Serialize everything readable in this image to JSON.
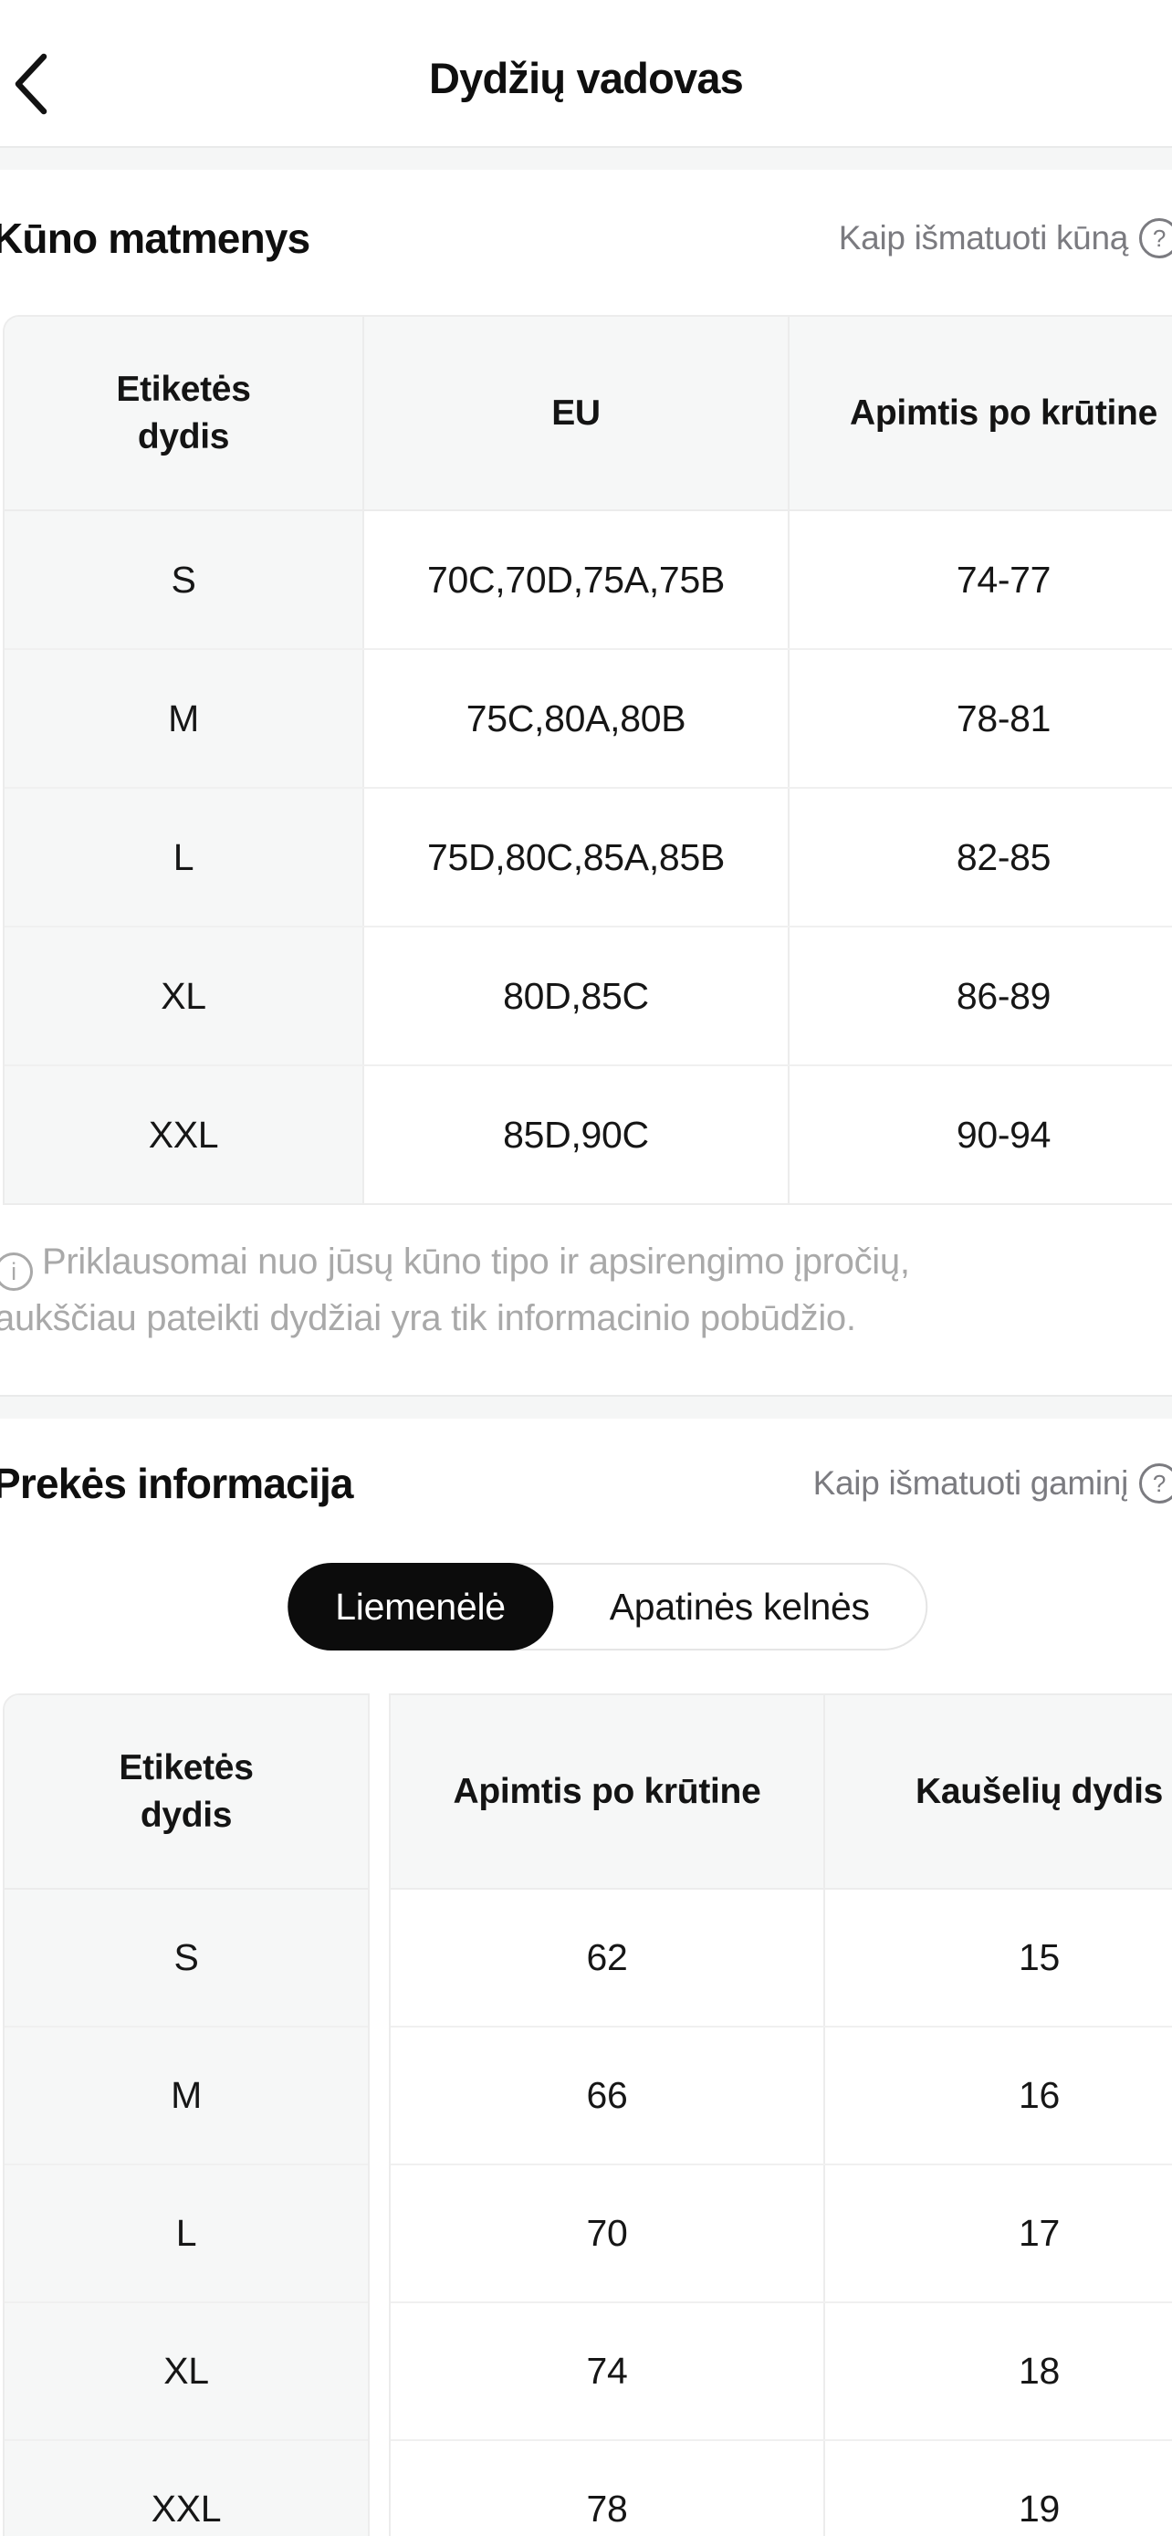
{
  "header": {
    "title": "Dydžių vadovas",
    "back_icon": "chevron-left"
  },
  "body_measurements": {
    "heading": "Kūno matmenys",
    "help_link": "Kaip išmatuoti kūną",
    "help_icon": "question-circle",
    "table": {
      "columns": [
        "Etiketės dydis",
        "EU",
        "Apimtis po krūtine"
      ],
      "rows": [
        [
          "S",
          "70C,70D,75A,75B",
          "74-77"
        ],
        [
          "M",
          "75C,80A,80B",
          "78-81"
        ],
        [
          "L",
          "75D,80C,85A,85B",
          "82-85"
        ],
        [
          "XL",
          "80D,85C",
          "86-89"
        ],
        [
          "XXL",
          "85D,90C",
          "90-94"
        ]
      ]
    },
    "note_icon": "info-circle",
    "note_lines": [
      "Priklausomai nuo jūsų kūno tipo ir apsirengimo įpročių,",
      "aukščiau pateikti dydžiai yra tik informacinio pobūdžio."
    ]
  },
  "product_info": {
    "heading": "Prekės informacija",
    "help_link": "Kaip išmatuoti gaminį",
    "help_icon": "question-circle",
    "tabs": [
      {
        "label": "Liemenėlė",
        "active": true
      },
      {
        "label": "Apatinės kelnės",
        "active": false
      }
    ],
    "table": {
      "columns": [
        "Etiketės dydis",
        "Apimtis po krūtine",
        "Kaušelių dydis"
      ],
      "rows": [
        [
          "S",
          "62",
          "15"
        ],
        [
          "M",
          "66",
          "16"
        ],
        [
          "L",
          "70",
          "17"
        ],
        [
          "XL",
          "74",
          "18"
        ],
        [
          "XXL",
          "78",
          "19"
        ]
      ]
    }
  },
  "glyphs": {
    "question": "?",
    "info": "i"
  },
  "colors": {
    "accent_black": "#0c0c0c",
    "divider_band": "#f5f6f6",
    "cell_gray": "#f6f7f7",
    "table_border": "#ececec",
    "muted_text": "#7b7b80",
    "note_text": "#a9a9a9"
  }
}
